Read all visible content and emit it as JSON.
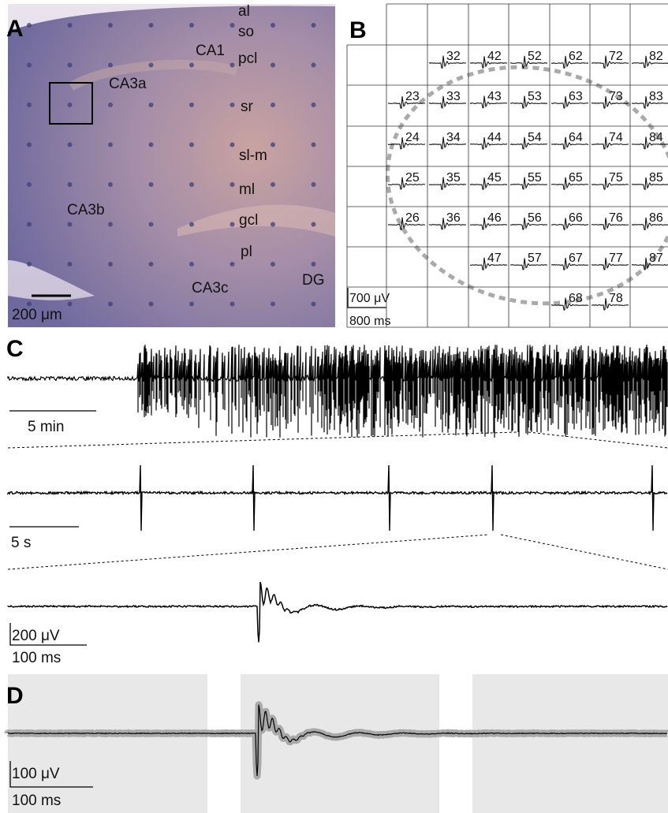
{
  "panel_a": {
    "label": "A",
    "regions": [
      "al",
      "so",
      "CA1",
      "pcl",
      "CA3a",
      "sr",
      "sl-m",
      "ml",
      "CA3b",
      "gcl",
      "pl",
      "CA3c",
      "DG"
    ],
    "scale": "200 μm"
  },
  "panel_b": {
    "label": "B",
    "rows": [
      [
        "32",
        "42",
        "52",
        "62",
        "72",
        "82"
      ],
      [
        "23",
        "33",
        "43",
        "53",
        "63",
        "73",
        "83"
      ],
      [
        "24",
        "34",
        "44",
        "54",
        "64",
        "74",
        "84"
      ],
      [
        "25",
        "35",
        "45",
        "55",
        "65",
        "75",
        "85"
      ],
      [
        "26",
        "36",
        "46",
        "56",
        "66",
        "76",
        "86"
      ],
      [
        "47",
        "57",
        "67",
        "77",
        "87"
      ],
      [
        "68",
        "78"
      ]
    ],
    "scale_voltage": "700 μV",
    "scale_time": "800 ms"
  },
  "panel_c": {
    "label": "C",
    "scale_long": "5 min",
    "scale_mid": "5 s",
    "scale_voltage": "200 μV",
    "scale_time": "100 ms"
  },
  "panel_d": {
    "label": "D",
    "scale_voltage": "100 μV",
    "scale_time": "100 ms"
  }
}
